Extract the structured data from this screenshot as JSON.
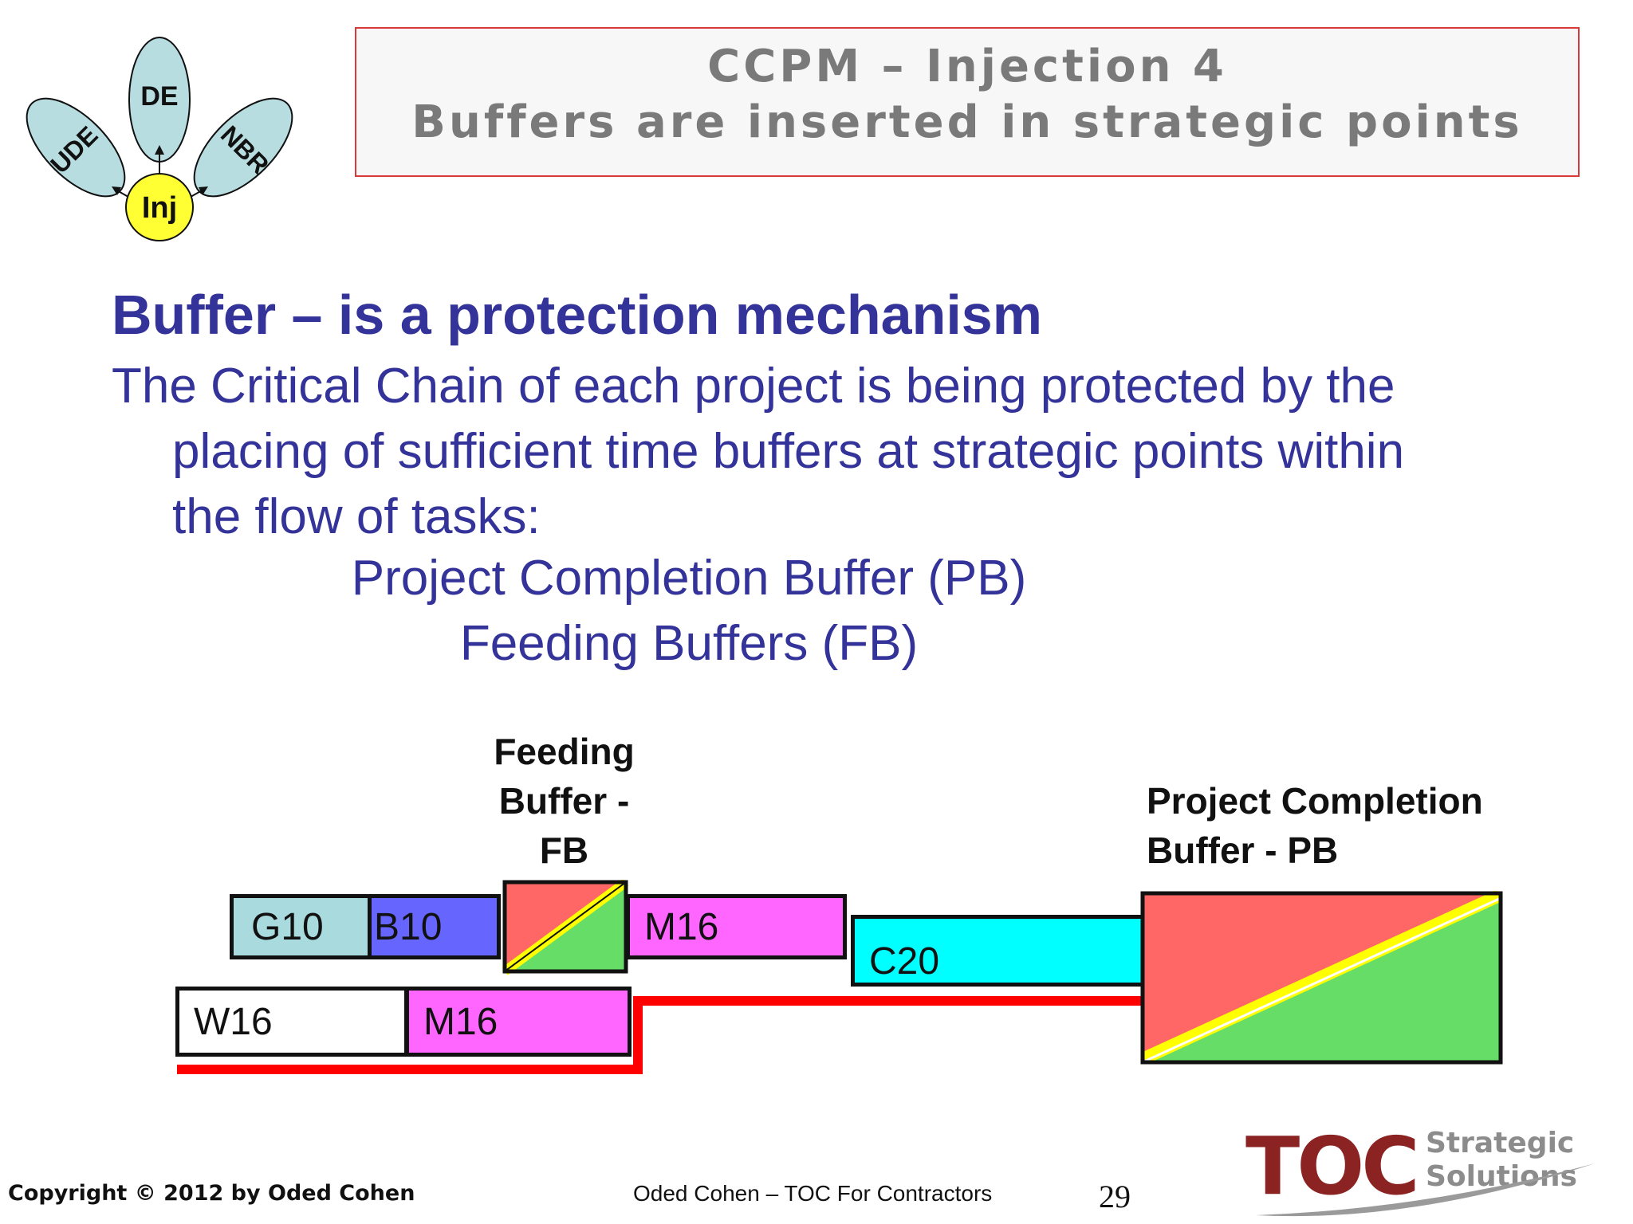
{
  "logo_diagram": {
    "petal_top": "DE",
    "petal_left": "UDE",
    "petal_right": "NBR",
    "center": "Inj"
  },
  "title": {
    "line1": "CCPM – Injection 4",
    "line2": "Buffers are inserted in strategic points"
  },
  "heading": "Buffer – is a protection mechanism",
  "body": {
    "line1": "The Critical Chain of each project is being protected by the",
    "line2": "placing of sufficient time buffers at strategic points within",
    "line3": "the flow of tasks:",
    "item1": "Project Completion Buffer (PB)",
    "item2": "Feeding Buffers (FB)"
  },
  "diagram": {
    "fb_label": [
      "Feeding",
      "Buffer -",
      "FB"
    ],
    "pb_label": [
      "Project Completion",
      "Buffer - PB"
    ],
    "tasks": {
      "g10": "G10",
      "b10": "B10",
      "m16_top": "M16",
      "c20": "C20",
      "w16": "W16",
      "m16_bottom": "M16"
    },
    "colors": {
      "g10": "#a8dade",
      "b10": "#6666ff",
      "m16": "#ff66ff",
      "c20": "#00ffff",
      "w16": "#ffffff",
      "buffer_red": "#ff6666",
      "buffer_green": "#66dd66",
      "buffer_stripe": "#ffff00",
      "critical_chain": "#ff0000"
    }
  },
  "footer": {
    "copyright": "Copyright © 2012 by Oded Cohen",
    "center": "Oded Cohen – TOC For Contractors",
    "page": "29"
  },
  "brand": {
    "toc": "TOC",
    "strategic": "Strategic",
    "solutions": "Solutions"
  }
}
